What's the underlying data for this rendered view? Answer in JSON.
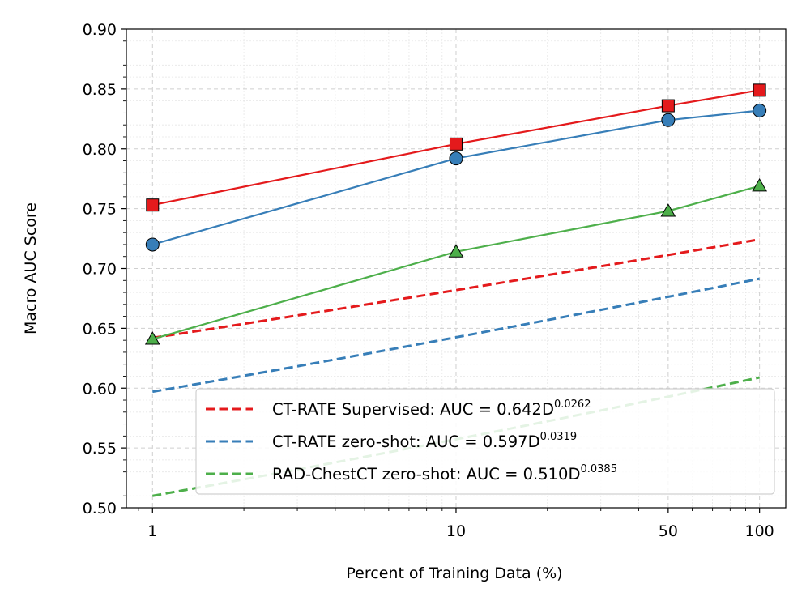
{
  "chart_data": {
    "type": "line",
    "title": "",
    "xlabel": "Percent of Training Data (%)",
    "ylabel": "Macro AUC Score",
    "xscale": "log",
    "x": [
      1,
      10,
      50,
      100
    ],
    "xticks": [
      1,
      10,
      50,
      100
    ],
    "xtick_labels": [
      "1",
      "10",
      "50",
      "100"
    ],
    "ylim": [
      0.5,
      0.9
    ],
    "yticks": [
      0.5,
      0.55,
      0.6,
      0.65,
      0.7,
      0.75,
      0.8,
      0.85,
      0.9
    ],
    "ytick_labels": [
      "0.50",
      "0.55",
      "0.60",
      "0.65",
      "0.70",
      "0.75",
      "0.80",
      "0.85",
      "0.90"
    ],
    "grid": true,
    "legend_position": "bottom-right",
    "series": [
      {
        "name": "CT-RATE Supervised",
        "values": [
          0.753,
          0.804,
          0.836,
          0.849
        ],
        "color": "#e41a1c",
        "marker": "square",
        "fit": {
          "a": 0.642,
          "b": 0.0262
        },
        "legend_prefix": "CT-RATE Supervised: AUC = 0.642D",
        "legend_exp": "0.0262"
      },
      {
        "name": "CT-RATE zero-shot",
        "values": [
          0.72,
          0.792,
          0.824,
          0.832
        ],
        "color": "#377eb8",
        "marker": "circle",
        "fit": {
          "a": 0.597,
          "b": 0.0319
        },
        "legend_prefix": "CT-RATE zero-shot: AUC = 0.597D",
        "legend_exp": "0.0319"
      },
      {
        "name": "RAD-ChestCT zero-shot",
        "values": [
          0.641,
          0.714,
          0.748,
          0.769
        ],
        "color": "#4daf4a",
        "marker": "triangle",
        "fit": {
          "a": 0.51,
          "b": 0.0385
        },
        "legend_prefix": "RAD-ChestCT zero-shot: AUC = 0.510D",
        "legend_exp": "0.0385"
      }
    ]
  }
}
